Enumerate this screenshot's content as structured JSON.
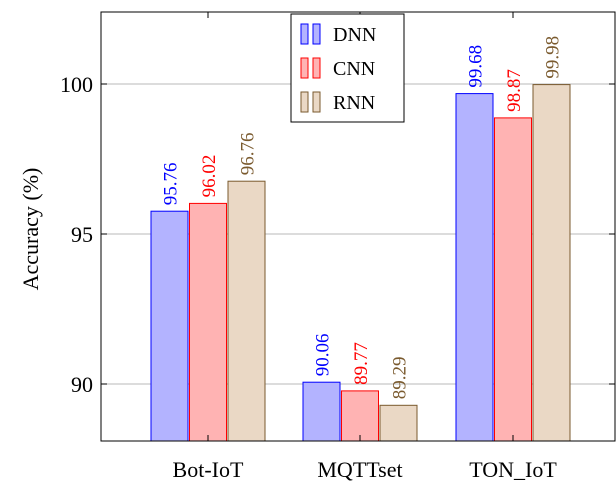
{
  "chart_data": {
    "type": "bar",
    "categories": [
      "Bot-IoT",
      "MQTTset",
      "TON_IoT"
    ],
    "series": [
      {
        "name": "DNN",
        "values": [
          95.76,
          90.06,
          99.68
        ],
        "labels": [
          "95.76",
          "90.06",
          "99.68"
        ],
        "fill": "#b3b3ff",
        "stroke": "#0000ff",
        "label_color": "#0000ff"
      },
      {
        "name": "CNN",
        "values": [
          96.02,
          89.77,
          98.87
        ],
        "labels": [
          "96.02",
          "89.77",
          "98.87"
        ],
        "fill": "#ffb3b3",
        "stroke": "#ff0000",
        "label_color": "#ff0000"
      },
      {
        "name": "RNN",
        "values": [
          96.76,
          89.29,
          99.98
        ],
        "labels": [
          "96.76",
          "89.29",
          "99.98"
        ],
        "fill": "#ead8c5",
        "stroke": "#7a5a2e",
        "label_color": "#7a5a2e"
      }
    ],
    "title": "",
    "xlabel": "",
    "ylabel": "Accuracy (%)",
    "ylim": [
      88.1,
      102.4
    ],
    "yticks": [
      90,
      95,
      100
    ],
    "ytick_labels": [
      "90",
      "95",
      "100"
    ],
    "grid": "horizontal",
    "legend_position": "top-center"
  }
}
